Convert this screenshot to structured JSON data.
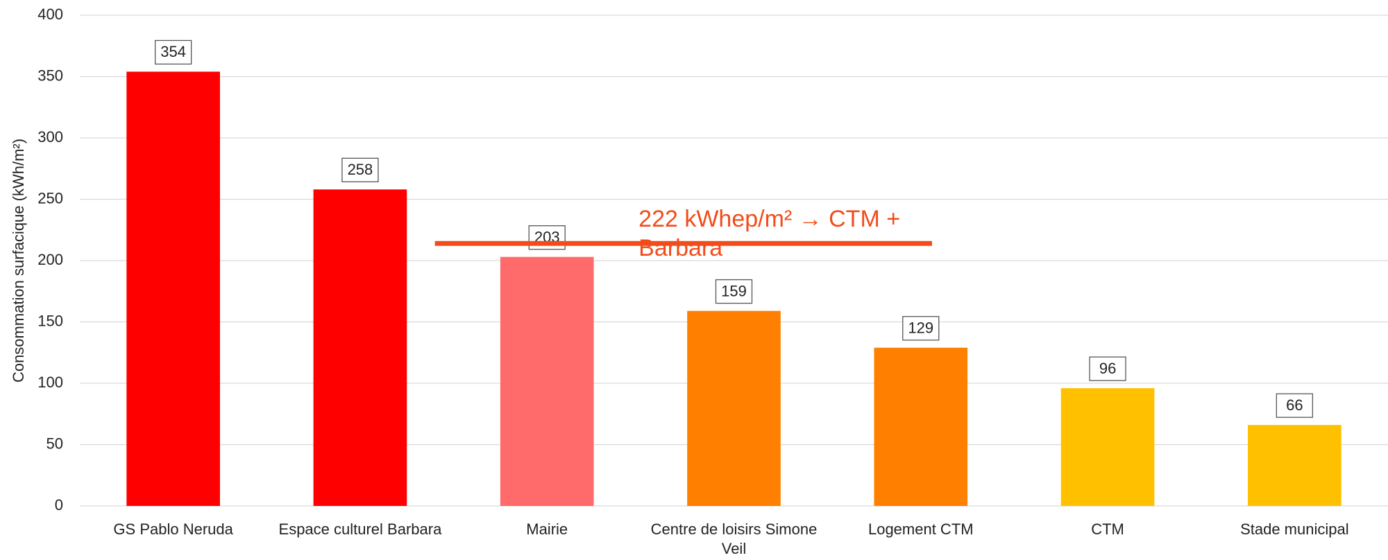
{
  "chart_data": {
    "type": "bar",
    "y_axis_label": "Consommation surfacique (kWh/m²)",
    "categories": [
      "GS Pablo Neruda",
      "Espace culturel Barbara",
      "Mairie",
      "Centre de loisirs Simone Veil",
      "Logement CTM",
      "CTM",
      "Stade municipal"
    ],
    "values": [
      354,
      258,
      203,
      159,
      129,
      96,
      66
    ],
    "colors": [
      "#ff0000",
      "#ff0000",
      "#ff6b6b",
      "#ff8000",
      "#ff8000",
      "#ffc000",
      "#ffc000"
    ],
    "ylim": [
      0,
      400
    ],
    "yticks": [
      0,
      50,
      100,
      150,
      200,
      250,
      300,
      350,
      400
    ],
    "grid": true,
    "annotation": {
      "text": "222 kWhep/m² → CTM + Barbara",
      "line_value": 214,
      "color": "#f24c1a"
    }
  }
}
